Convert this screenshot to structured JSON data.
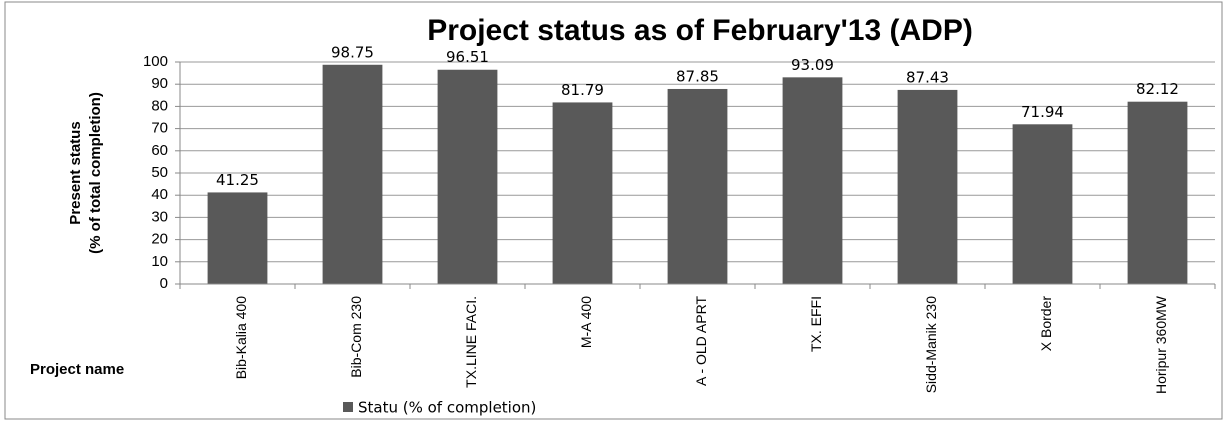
{
  "chart_data": {
    "type": "bar",
    "title": "Project  status as of February'13 (ADP)",
    "y_label": [
      "Present status",
      "(% of total completion)"
    ],
    "x_label": "Project name",
    "categories": [
      "Bib-Kalia 400",
      "Bib-Com 230",
      "TX.LINE FACI.",
      "M-A 400",
      "A - OLD APRT",
      "TX. EFFI",
      "Sidd-Manik 230",
      "X Border",
      "Horipur 360MW"
    ],
    "series": [
      {
        "name": "Statu (% of completion)",
        "color": "#595959",
        "values": [
          41.25,
          98.75,
          96.51,
          81.79,
          87.85,
          93.09,
          87.43,
          71.94,
          82.12
        ]
      }
    ],
    "ylim": [
      0,
      100
    ],
    "yticks": [
      0,
      10,
      20,
      30,
      40,
      50,
      60,
      70,
      80,
      90,
      100
    ],
    "grid": true,
    "legend": "bottom"
  }
}
